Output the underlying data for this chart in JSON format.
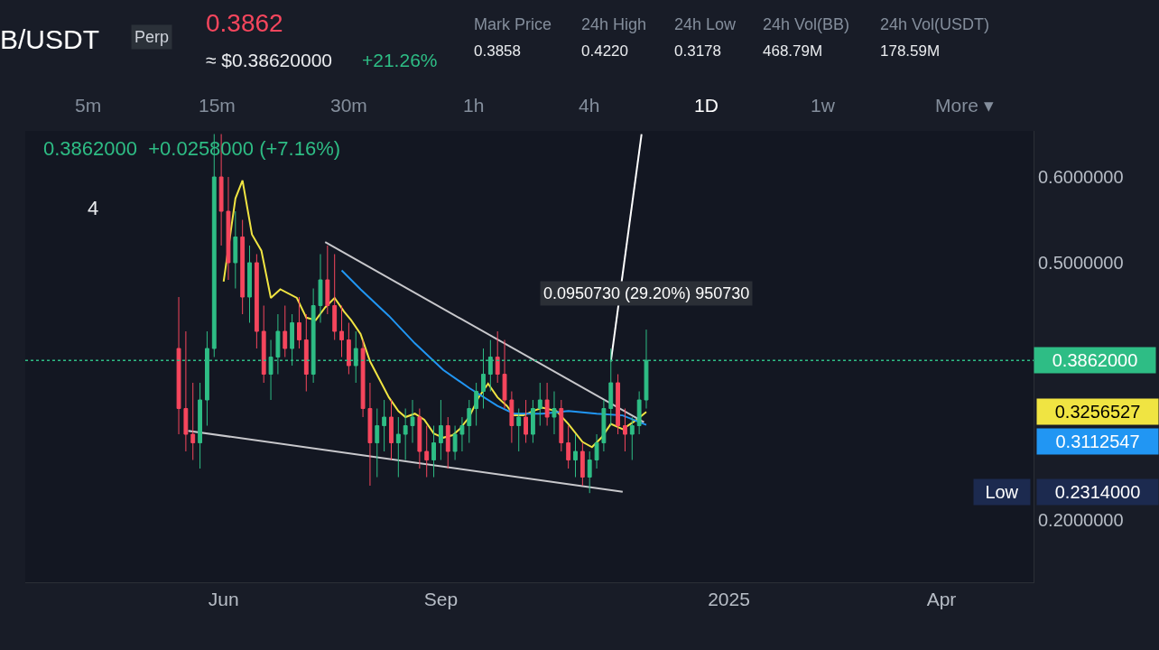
{
  "chart_data": {
    "type": "candlestick",
    "title": "B/USDT",
    "x": [
      "2024-05-13",
      "2024-05-16",
      "2024-05-19",
      "2024-05-22",
      "2024-05-25",
      "2024-05-28",
      "2024-05-31",
      "2024-06-03",
      "2024-06-06",
      "2024-06-09",
      "2024-06-12",
      "2024-06-15",
      "2024-06-18",
      "2024-06-21",
      "2024-06-24",
      "2024-06-27",
      "2024-06-30",
      "2024-07-03",
      "2024-07-06",
      "2024-07-09",
      "2024-07-12",
      "2024-07-15",
      "2024-07-18",
      "2024-07-21",
      "2024-07-24",
      "2024-07-27",
      "2024-07-30",
      "2024-08-02",
      "2024-08-05",
      "2024-08-08",
      "2024-08-11",
      "2024-08-14",
      "2024-08-17",
      "2024-08-20",
      "2024-08-23",
      "2024-08-26",
      "2024-08-29",
      "2024-09-01",
      "2024-09-04",
      "2024-09-07",
      "2024-09-10",
      "2024-09-13",
      "2024-09-16",
      "2024-09-19",
      "2024-09-22",
      "2024-09-25",
      "2024-09-28",
      "2024-10-01",
      "2024-10-04",
      "2024-10-07",
      "2024-10-10",
      "2024-10-13",
      "2024-10-16",
      "2024-10-19",
      "2024-10-22",
      "2024-10-25",
      "2024-10-28",
      "2024-10-31",
      "2024-11-03",
      "2024-11-06",
      "2024-11-09",
      "2024-11-12",
      "2024-11-15",
      "2024-11-18",
      "2024-11-21",
      "2024-11-24",
      "2024-11-27"
    ],
    "ohlc": [
      [
        0.4,
        0.46,
        0.3,
        0.33
      ],
      [
        0.33,
        0.42,
        0.28,
        0.3
      ],
      [
        0.3,
        0.36,
        0.27,
        0.29
      ],
      [
        0.29,
        0.36,
        0.26,
        0.34
      ],
      [
        0.34,
        0.42,
        0.31,
        0.4
      ],
      [
        0.4,
        0.65,
        0.39,
        0.6
      ],
      [
        0.6,
        0.65,
        0.52,
        0.56
      ],
      [
        0.56,
        0.6,
        0.48,
        0.5
      ],
      [
        0.5,
        0.56,
        0.47,
        0.53
      ],
      [
        0.53,
        0.55,
        0.44,
        0.46
      ],
      [
        0.46,
        0.52,
        0.43,
        0.5
      ],
      [
        0.5,
        0.51,
        0.4,
        0.42
      ],
      [
        0.42,
        0.45,
        0.36,
        0.37
      ],
      [
        0.37,
        0.41,
        0.34,
        0.39
      ],
      [
        0.39,
        0.44,
        0.37,
        0.42
      ],
      [
        0.42,
        0.45,
        0.39,
        0.4
      ],
      [
        0.4,
        0.44,
        0.38,
        0.43
      ],
      [
        0.43,
        0.46,
        0.4,
        0.41
      ],
      [
        0.41,
        0.44,
        0.35,
        0.37
      ],
      [
        0.37,
        0.47,
        0.36,
        0.45
      ],
      [
        0.45,
        0.51,
        0.43,
        0.48
      ],
      [
        0.48,
        0.52,
        0.44,
        0.45
      ],
      [
        0.45,
        0.51,
        0.41,
        0.42
      ],
      [
        0.42,
        0.45,
        0.39,
        0.41
      ],
      [
        0.41,
        0.43,
        0.37,
        0.38
      ],
      [
        0.38,
        0.42,
        0.36,
        0.4
      ],
      [
        0.4,
        0.41,
        0.32,
        0.33
      ],
      [
        0.33,
        0.36,
        0.24,
        0.29
      ],
      [
        0.29,
        0.33,
        0.25,
        0.31
      ],
      [
        0.31,
        0.34,
        0.28,
        0.32
      ],
      [
        0.32,
        0.34,
        0.27,
        0.29
      ],
      [
        0.29,
        0.32,
        0.25,
        0.3
      ],
      [
        0.3,
        0.33,
        0.27,
        0.31
      ],
      [
        0.31,
        0.34,
        0.29,
        0.32
      ],
      [
        0.32,
        0.33,
        0.26,
        0.28
      ],
      [
        0.28,
        0.31,
        0.25,
        0.27
      ],
      [
        0.27,
        0.31,
        0.25,
        0.29
      ],
      [
        0.29,
        0.34,
        0.27,
        0.31
      ],
      [
        0.31,
        0.32,
        0.26,
        0.28
      ],
      [
        0.28,
        0.31,
        0.27,
        0.3
      ],
      [
        0.3,
        0.32,
        0.28,
        0.31
      ],
      [
        0.31,
        0.34,
        0.29,
        0.33
      ],
      [
        0.33,
        0.36,
        0.31,
        0.35
      ],
      [
        0.35,
        0.4,
        0.33,
        0.37
      ],
      [
        0.37,
        0.41,
        0.35,
        0.39
      ],
      [
        0.39,
        0.42,
        0.36,
        0.37
      ],
      [
        0.37,
        0.41,
        0.33,
        0.34
      ],
      [
        0.34,
        0.35,
        0.29,
        0.31
      ],
      [
        0.31,
        0.33,
        0.28,
        0.32
      ],
      [
        0.32,
        0.34,
        0.29,
        0.3
      ],
      [
        0.3,
        0.34,
        0.29,
        0.33
      ],
      [
        0.33,
        0.36,
        0.31,
        0.34
      ],
      [
        0.34,
        0.36,
        0.31,
        0.32
      ],
      [
        0.32,
        0.35,
        0.3,
        0.33
      ],
      [
        0.33,
        0.34,
        0.28,
        0.29
      ],
      [
        0.29,
        0.31,
        0.26,
        0.27
      ],
      [
        0.27,
        0.3,
        0.25,
        0.28
      ],
      [
        0.28,
        0.29,
        0.24,
        0.25
      ],
      [
        0.25,
        0.28,
        0.2314,
        0.27
      ],
      [
        0.27,
        0.3,
        0.26,
        0.29
      ],
      [
        0.29,
        0.34,
        0.28,
        0.33
      ],
      [
        0.33,
        0.4,
        0.31,
        0.36
      ],
      [
        0.36,
        0.37,
        0.3,
        0.31
      ],
      [
        0.31,
        0.33,
        0.28,
        0.3
      ],
      [
        0.3,
        0.32,
        0.27,
        0.31
      ],
      [
        0.31,
        0.35,
        0.3,
        0.34
      ],
      [
        0.34,
        0.422,
        0.33,
        0.3862
      ]
    ],
    "series": [
      {
        "type": "line",
        "color": "#f0e442",
        "x": [
          "2024-06-01",
          "2024-06-06",
          "2024-06-09",
          "2024-06-13",
          "2024-06-17",
          "2024-06-21",
          "2024-06-25",
          "2024-07-02",
          "2024-07-06",
          "2024-07-10",
          "2024-07-14",
          "2024-07-18",
          "2024-07-22",
          "2024-07-25",
          "2024-07-29",
          "2024-08-02",
          "2024-08-06",
          "2024-08-10",
          "2024-08-14",
          "2024-08-17",
          "2024-08-21",
          "2024-08-25",
          "2024-08-29",
          "2024-09-02",
          "2024-09-06",
          "2024-09-09",
          "2024-09-13",
          "2024-09-17",
          "2024-09-21",
          "2024-09-25",
          "2024-09-29",
          "2024-10-02",
          "2024-10-06",
          "2024-10-10",
          "2024-10-14",
          "2024-10-20",
          "2024-10-25",
          "2024-10-31",
          "2024-11-04",
          "2024-11-08",
          "2024-11-12",
          "2024-11-17",
          "2024-11-23",
          "2024-11-27"
        ],
        "values": [
          0.478,
          0.575,
          0.596,
          0.533,
          0.514,
          0.459,
          0.469,
          0.459,
          0.436,
          0.433,
          0.448,
          0.459,
          0.443,
          0.433,
          0.417,
          0.385,
          0.364,
          0.343,
          0.327,
          0.32,
          0.324,
          0.317,
          0.301,
          0.296,
          0.299,
          0.306,
          0.32,
          0.343,
          0.359,
          0.343,
          0.333,
          0.322,
          0.322,
          0.327,
          0.331,
          0.327,
          0.312,
          0.291,
          0.285,
          0.296,
          0.312,
          0.306,
          0.317,
          0.326
        ]
      },
      {
        "type": "line",
        "color": "#2196f3",
        "x": [
          "2024-07-21",
          "2024-07-29",
          "2024-08-10",
          "2024-08-21",
          "2024-09-02",
          "2024-09-13",
          "2024-09-25",
          "2024-10-02",
          "2024-10-14",
          "2024-10-25",
          "2024-11-06",
          "2024-11-17",
          "2024-11-27"
        ],
        "values": [
          0.491,
          0.469,
          0.438,
          0.406,
          0.375,
          0.354,
          0.333,
          0.324,
          0.324,
          0.327,
          0.324,
          0.322,
          0.311
        ]
      },
      {
        "type": "line",
        "color": "#c8c8cc",
        "x": [
          "2024-07-14",
          "2024-11-26"
        ],
        "values": [
          0.524,
          0.314
        ]
      },
      {
        "type": "line",
        "color": "#c8c8cc",
        "x": [
          "2024-05-17",
          "2024-11-17"
        ],
        "values": [
          0.304,
          0.233
        ]
      },
      {
        "type": "line",
        "color": "#ffffff",
        "x": [
          "2024-11-12",
          "2024-11-25"
        ],
        "values": [
          0.385,
          0.65
        ]
      }
    ],
    "ref_lines": [
      {
        "axis": "y",
        "value": 0.3862,
        "label": "0.3862000",
        "color": "#2ebd85",
        "line_style": "dotted"
      }
    ],
    "annotations": [
      "Perp",
      "0.3862",
      "≈ $0.38620000",
      "+21.26%",
      "Mark Price",
      "0.3858",
      "24h High",
      "0.4220",
      "24h Low",
      "0.3178",
      "24h Vol(BB)",
      "468.79M",
      "24h Vol(USDT)",
      "178.59M",
      "5m",
      "15m",
      "30m",
      "1h",
      "4h",
      "1D",
      "1w",
      "More ▾",
      "0.3862000  +0.0258000 (+7.16%)",
      "4",
      "0.0950730 (29.20%) 950730",
      "0.3256527",
      "0.3112547",
      "Low",
      "0.2314000"
    ],
    "xlim": [
      "2024-03-09",
      "2025-05-10"
    ],
    "xticks": [
      {
        "value": "2024-06-01",
        "label": "Jun"
      },
      {
        "value": "2024-09-01",
        "label": "Sep"
      },
      {
        "value": "2025-01-01",
        "label": "2025"
      },
      {
        "value": "2025-04-01",
        "label": "Apr"
      }
    ],
    "ylim": [
      0.1274,
      0.6537
    ],
    "yticks": [
      {
        "value": 0.2,
        "label": "0.2000000"
      },
      {
        "value": 0.5,
        "label": "0.5000000"
      },
      {
        "value": 0.6,
        "label": "0.6000000"
      }
    ]
  }
}
